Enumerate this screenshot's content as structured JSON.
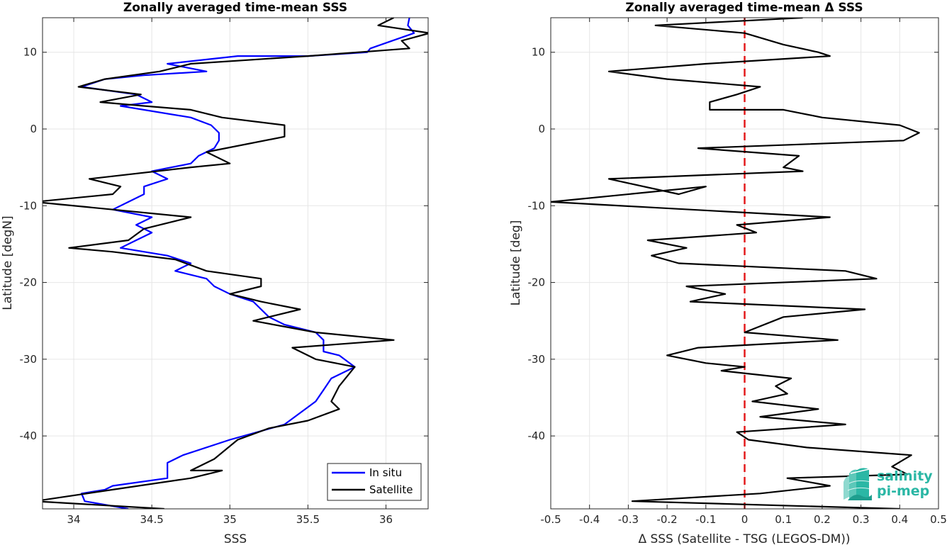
{
  "chart_data": [
    {
      "type": "line",
      "title": "Zonally averaged time-mean SSS",
      "xlabel": "SSS",
      "ylabel": "Latitude [degN]",
      "xlim": [
        33.8,
        36.27
      ],
      "ylim": [
        -49.5,
        14.5
      ],
      "x_ticks": [
        "34",
        "34.5",
        "35",
        "35.5",
        "36"
      ],
      "y_ticks": [
        "10",
        "0",
        "-10",
        "-20",
        "-30",
        "-40"
      ],
      "grid": true,
      "legend": {
        "location": "bottom-right",
        "entries": [
          "In situ",
          "Satellite"
        ]
      },
      "series": [
        {
          "name": "In situ",
          "color": "#0000ff",
          "points": [
            [
              36.15,
              14.5
            ],
            [
              36.14,
              13.5
            ],
            [
              36.18,
              12.5
            ],
            [
              35.9,
              10.5
            ],
            [
              35.88,
              10.0
            ],
            [
              35.5,
              9.5
            ],
            [
              35.05,
              9.5
            ],
            [
              34.6,
              8.5
            ],
            [
              34.85,
              7.5
            ],
            [
              34.45,
              7.0
            ],
            [
              34.2,
              6.5
            ],
            [
              34.05,
              5.5
            ],
            [
              34.4,
              4.5
            ],
            [
              34.5,
              3.5
            ],
            [
              34.3,
              3.0
            ],
            [
              34.75,
              1.5
            ],
            [
              34.88,
              0.5
            ],
            [
              34.93,
              -0.5
            ],
            [
              34.93,
              -1.5
            ],
            [
              34.9,
              -2.5
            ],
            [
              34.8,
              -3.5
            ],
            [
              34.75,
              -4.5
            ],
            [
              34.5,
              -5.5
            ],
            [
              34.6,
              -6.5
            ],
            [
              34.45,
              -7.5
            ],
            [
              34.45,
              -8.5
            ],
            [
              34.35,
              -9.5
            ],
            [
              34.25,
              -10.5
            ],
            [
              34.5,
              -11.5
            ],
            [
              34.4,
              -12.5
            ],
            [
              34.5,
              -13.5
            ],
            [
              34.4,
              -14.5
            ],
            [
              34.3,
              -15.5
            ],
            [
              34.6,
              -16.5
            ],
            [
              34.75,
              -17.5
            ],
            [
              34.65,
              -18.5
            ],
            [
              34.85,
              -19.5
            ],
            [
              34.9,
              -20.5
            ],
            [
              35.0,
              -21.5
            ],
            [
              35.15,
              -22.5
            ],
            [
              35.25,
              -24.5
            ],
            [
              35.35,
              -25.5
            ],
            [
              35.55,
              -26.5
            ],
            [
              35.6,
              -27.5
            ],
            [
              35.6,
              -29.0
            ],
            [
              35.7,
              -29.5
            ],
            [
              35.8,
              -31.0
            ],
            [
              35.65,
              -32.5
            ],
            [
              35.6,
              -34.0
            ],
            [
              35.55,
              -35.5
            ],
            [
              35.45,
              -37.0
            ],
            [
              35.35,
              -38.5
            ],
            [
              35.0,
              -40.5
            ],
            [
              34.7,
              -42.5
            ],
            [
              34.6,
              -43.5
            ],
            [
              34.6,
              -45.5
            ],
            [
              34.25,
              -46.5
            ],
            [
              34.2,
              -47.0
            ],
            [
              34.05,
              -47.5
            ],
            [
              34.07,
              -48.5
            ],
            [
              34.35,
              -49.5
            ]
          ]
        },
        {
          "name": "Satellite",
          "color": "#000000",
          "points": [
            [
              36.05,
              14.5
            ],
            [
              35.95,
              13.5
            ],
            [
              36.28,
              12.5
            ],
            [
              36.1,
              11.5
            ],
            [
              36.15,
              10.5
            ],
            [
              35.5,
              9.5
            ],
            [
              34.75,
              8.5
            ],
            [
              34.55,
              7.5
            ],
            [
              34.2,
              6.5
            ],
            [
              34.03,
              5.5
            ],
            [
              34.43,
              4.5
            ],
            [
              34.17,
              3.5
            ],
            [
              34.45,
              3.0
            ],
            [
              34.75,
              2.5
            ],
            [
              34.95,
              1.5
            ],
            [
              35.35,
              0.5
            ],
            [
              35.35,
              -1.0
            ],
            [
              34.85,
              -3.0
            ],
            [
              35.0,
              -4.5
            ],
            [
              34.75,
              -5.0
            ],
            [
              34.1,
              -6.5
            ],
            [
              34.3,
              -7.5
            ],
            [
              34.25,
              -8.5
            ],
            [
              33.75,
              -9.5
            ],
            [
              34.25,
              -10.5
            ],
            [
              34.75,
              -11.5
            ],
            [
              34.45,
              -13.0
            ],
            [
              34.35,
              -14.5
            ],
            [
              33.97,
              -15.5
            ],
            [
              34.25,
              -16.0
            ],
            [
              34.65,
              -17.0
            ],
            [
              34.85,
              -18.5
            ],
            [
              35.2,
              -19.5
            ],
            [
              35.2,
              -20.5
            ],
            [
              35.0,
              -21.5
            ],
            [
              35.2,
              -22.5
            ],
            [
              35.45,
              -23.5
            ],
            [
              35.15,
              -25.0
            ],
            [
              35.55,
              -26.5
            ],
            [
              36.05,
              -27.5
            ],
            [
              35.4,
              -28.5
            ],
            [
              35.55,
              -30.0
            ],
            [
              35.8,
              -31.0
            ],
            [
              35.7,
              -33.5
            ],
            [
              35.65,
              -35.5
            ],
            [
              35.7,
              -36.5
            ],
            [
              35.5,
              -38.0
            ],
            [
              35.25,
              -39.0
            ],
            [
              35.05,
              -40.5
            ],
            [
              34.9,
              -43.0
            ],
            [
              34.75,
              -44.5
            ],
            [
              34.95,
              -44.5
            ],
            [
              34.75,
              -45.5
            ],
            [
              34.25,
              -47.0
            ],
            [
              33.75,
              -48.5
            ],
            [
              34.58,
              -49.5
            ]
          ]
        }
      ]
    },
    {
      "type": "line",
      "title": "Zonally averaged time-mean Δ SSS",
      "xlabel": "Δ SSS (Satellite - TSG (LEGOS-DM))",
      "ylabel": "Latitude [deg]",
      "xlim": [
        -0.5,
        0.5
      ],
      "ylim": [
        -49.5,
        14.5
      ],
      "x_ticks": [
        "-0.5",
        "-0.4",
        "-0.3",
        "-0.2",
        "-0.1",
        "0",
        "0.1",
        "0.2",
        "0.3",
        "0.4",
        "0.5"
      ],
      "y_ticks": [
        "10",
        "0",
        "-10",
        "-20",
        "-30",
        "-40"
      ],
      "grid": true,
      "reference_line": {
        "x": 0,
        "color": "#e31a1c",
        "style": "dashed"
      },
      "series": [
        {
          "name": "",
          "color": "#000000",
          "points": [
            [
              0.15,
              14.5
            ],
            [
              -0.23,
              13.5
            ],
            [
              0.0,
              12.5
            ],
            [
              0.1,
              11.0
            ],
            [
              0.19,
              10.0
            ],
            [
              0.22,
              9.5
            ],
            [
              -0.1,
              8.5
            ],
            [
              -0.35,
              7.5
            ],
            [
              -0.2,
              6.5
            ],
            [
              0.04,
              5.5
            ],
            [
              -0.02,
              4.5
            ],
            [
              -0.09,
              3.5
            ],
            [
              -0.09,
              2.5
            ],
            [
              0.1,
              2.5
            ],
            [
              0.2,
              1.5
            ],
            [
              0.4,
              0.5
            ],
            [
              0.45,
              -0.5
            ],
            [
              0.41,
              -1.5
            ],
            [
              -0.12,
              -2.5
            ],
            [
              0.14,
              -3.5
            ],
            [
              0.1,
              -5.0
            ],
            [
              0.15,
              -5.5
            ],
            [
              -0.35,
              -6.5
            ],
            [
              -0.17,
              -8.5
            ],
            [
              -0.1,
              -7.5
            ],
            [
              -0.5,
              -9.5
            ],
            [
              0.22,
              -11.5
            ],
            [
              -0.02,
              -12.5
            ],
            [
              0.03,
              -13.5
            ],
            [
              -0.25,
              -14.5
            ],
            [
              -0.15,
              -15.5
            ],
            [
              -0.24,
              -16.5
            ],
            [
              -0.17,
              -17.5
            ],
            [
              0.26,
              -18.5
            ],
            [
              0.34,
              -19.5
            ],
            [
              -0.15,
              -20.5
            ],
            [
              -0.05,
              -21.5
            ],
            [
              -0.14,
              -22.5
            ],
            [
              0.31,
              -23.5
            ],
            [
              0.1,
              -24.5
            ],
            [
              0.0,
              -26.5
            ],
            [
              0.24,
              -27.5
            ],
            [
              -0.12,
              -28.5
            ],
            [
              -0.2,
              -29.5
            ],
            [
              -0.1,
              -30.5
            ],
            [
              0.0,
              -31.0
            ],
            [
              -0.06,
              -31.5
            ],
            [
              0.12,
              -32.5
            ],
            [
              0.08,
              -33.5
            ],
            [
              0.11,
              -34.5
            ],
            [
              0.02,
              -35.5
            ],
            [
              0.19,
              -36.5
            ],
            [
              0.04,
              -37.5
            ],
            [
              0.26,
              -38.5
            ],
            [
              -0.02,
              -39.5
            ],
            [
              0.01,
              -40.5
            ],
            [
              0.16,
              -41.5
            ],
            [
              0.43,
              -42.5
            ],
            [
              0.38,
              -44.0
            ],
            [
              0.42,
              -45.0
            ],
            [
              0.11,
              -45.5
            ],
            [
              0.22,
              -46.5
            ],
            [
              0.04,
              -47.5
            ],
            [
              -0.29,
              -48.5
            ],
            [
              0.4,
              -49.5
            ]
          ]
        }
      ]
    }
  ],
  "logo": {
    "line1": "salinity",
    "line2": "pi-mep"
  },
  "colors": {
    "in_situ": "#0000ff",
    "satellite": "#000000",
    "zero_line": "#e31a1c",
    "logo": "#2bb7a5"
  }
}
